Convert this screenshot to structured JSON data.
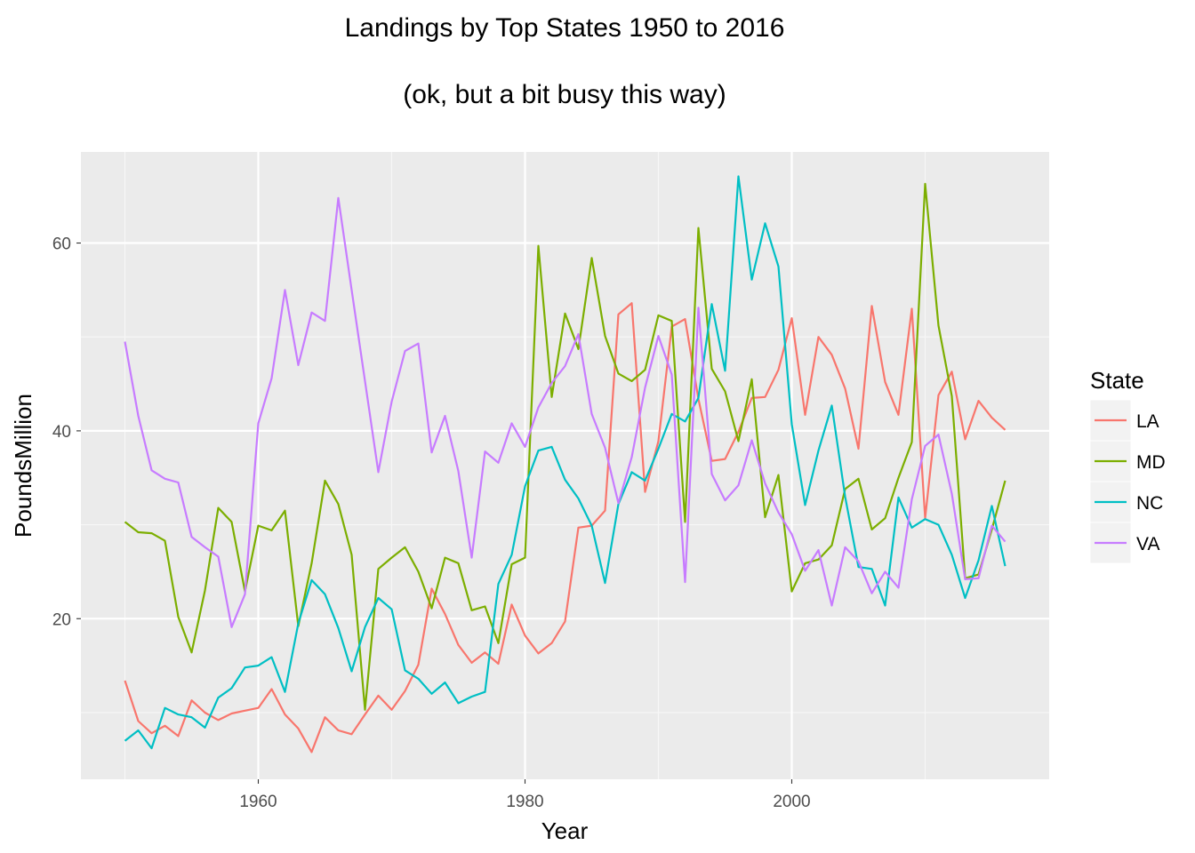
{
  "chart_data": {
    "type": "line",
    "title": "Landings by Top States 1950 to 2016",
    "subtitle": "(ok, but a bit busy this way)",
    "xlabel": "Year",
    "ylabel": "PoundsMillion",
    "xlim": [
      1946.7,
      2019.3
    ],
    "ylim": [
      2.9,
      69.7
    ],
    "x_ticks": [
      1960,
      1980,
      2000
    ],
    "y_ticks": [
      20,
      40,
      60
    ],
    "x_tick_labels": [
      "1960",
      "1980",
      "2000"
    ],
    "y_tick_labels": [
      "20",
      "40",
      "60"
    ],
    "grid": true,
    "background": "#ebebeb",
    "legend": {
      "title": "State",
      "position": "right"
    },
    "x": [
      1950,
      1951,
      1952,
      1953,
      1954,
      1955,
      1956,
      1957,
      1958,
      1959,
      1960,
      1961,
      1962,
      1963,
      1964,
      1965,
      1966,
      1967,
      1968,
      1969,
      1970,
      1971,
      1972,
      1973,
      1974,
      1975,
      1976,
      1977,
      1978,
      1979,
      1980,
      1981,
      1982,
      1983,
      1984,
      1985,
      1986,
      1987,
      1988,
      1989,
      1990,
      1991,
      1992,
      1993,
      1994,
      1995,
      1996,
      1997,
      1998,
      1999,
      2000,
      2001,
      2002,
      2003,
      2004,
      2005,
      2006,
      2007,
      2008,
      2009,
      2010,
      2011,
      2012,
      2013,
      2014,
      2015,
      2016
    ],
    "series": [
      {
        "name": "LA",
        "color": "#F8766D",
        "values": [
          13.4,
          9.1,
          7.8,
          8.6,
          7.5,
          11.3,
          10.0,
          9.2,
          9.9,
          10.2,
          10.5,
          12.5,
          9.8,
          8.3,
          5.8,
          9.5,
          8.1,
          7.7,
          9.8,
          11.8,
          10.3,
          12.3,
          15.1,
          23.2,
          20.5,
          17.2,
          15.3,
          16.4,
          15.2,
          21.5,
          18.2,
          16.3,
          17.4,
          19.7,
          29.7,
          29.9,
          31.5,
          52.4,
          53.6,
          33.5,
          38.9,
          51.1,
          51.9,
          43.4,
          36.8,
          37.0,
          39.9,
          43.5,
          43.6,
          46.5,
          52.0,
          41.7,
          50.0,
          48.1,
          44.5,
          38.1,
          53.3,
          45.2,
          41.7,
          53.0,
          30.7,
          43.8,
          46.3,
          39.1,
          43.2,
          41.4,
          40.1
        ]
      },
      {
        "name": "MD",
        "color": "#7CAE00",
        "values": [
          30.3,
          29.2,
          29.1,
          28.3,
          20.2,
          16.4,
          23.0,
          31.8,
          30.3,
          22.9,
          29.9,
          29.4,
          31.5,
          19.2,
          25.9,
          34.7,
          32.2,
          26.8,
          10.3,
          25.3,
          26.5,
          27.6,
          25.0,
          21.1,
          26.5,
          25.9,
          20.9,
          21.3,
          17.4,
          25.8,
          26.5,
          59.7,
          43.6,
          52.5,
          48.7,
          58.4,
          50.1,
          46.1,
          45.3,
          46.5,
          52.3,
          51.7,
          30.3,
          61.6,
          46.6,
          44.2,
          38.9,
          45.5,
          30.8,
          35.3,
          22.9,
          25.9,
          26.3,
          27.8,
          33.8,
          34.9,
          29.5,
          30.7,
          35.0,
          38.8,
          66.3,
          51.2,
          43.7,
          24.3,
          24.7,
          29.5,
          34.7
        ]
      },
      {
        "name": "NC",
        "color": "#00BFC4",
        "values": [
          7.0,
          8.1,
          6.2,
          10.5,
          9.8,
          9.5,
          8.4,
          11.6,
          12.6,
          14.8,
          15.0,
          15.9,
          12.2,
          19.5,
          24.1,
          22.6,
          19.0,
          14.4,
          19.1,
          22.2,
          21.0,
          14.5,
          13.6,
          12.0,
          13.2,
          11.0,
          11.7,
          12.2,
          23.7,
          26.8,
          34.1,
          37.9,
          38.3,
          34.8,
          32.8,
          29.9,
          23.8,
          32.2,
          35.6,
          34.7,
          38.1,
          41.8,
          41.0,
          43.5,
          53.5,
          46.4,
          67.1,
          56.1,
          62.1,
          57.5,
          40.7,
          32.1,
          37.9,
          42.7,
          33.0,
          25.5,
          25.3,
          21.4,
          32.9,
          29.7,
          30.6,
          30.0,
          26.8,
          22.2,
          26.2,
          32.0,
          25.6
        ]
      },
      {
        "name": "VA",
        "color": "#C77CFF",
        "values": [
          49.5,
          41.6,
          35.8,
          34.9,
          34.5,
          28.7,
          27.6,
          26.6,
          19.1,
          22.6,
          40.8,
          45.6,
          55.0,
          47.0,
          52.6,
          51.7,
          64.8,
          55.0,
          45.3,
          35.6,
          43.1,
          48.5,
          49.3,
          37.7,
          41.6,
          35.7,
          26.5,
          37.8,
          36.6,
          40.8,
          38.3,
          42.5,
          45.1,
          46.9,
          50.3,
          41.8,
          38.2,
          32.3,
          37.2,
          44.6,
          50.1,
          46.0,
          23.9,
          53.1,
          35.4,
          32.6,
          34.2,
          39.0,
          34.4,
          31.3,
          29.0,
          25.1,
          27.3,
          21.4,
          27.6,
          26.1,
          22.7,
          25.0,
          23.3,
          32.7,
          38.4,
          39.6,
          33.3,
          24.2,
          24.3,
          29.9,
          28.2
        ]
      }
    ]
  }
}
